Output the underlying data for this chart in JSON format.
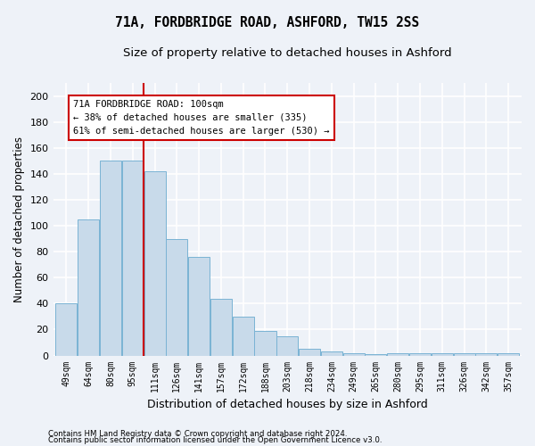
{
  "title1": "71A, FORDBRIDGE ROAD, ASHFORD, TW15 2SS",
  "title2": "Size of property relative to detached houses in Ashford",
  "xlabel": "Distribution of detached houses by size in Ashford",
  "ylabel": "Number of detached properties",
  "footer1": "Contains HM Land Registry data © Crown copyright and database right 2024.",
  "footer2": "Contains public sector information licensed under the Open Government Licence v3.0.",
  "bin_labels": [
    "49sqm",
    "64sqm",
    "80sqm",
    "95sqm",
    "111sqm",
    "126sqm",
    "141sqm",
    "157sqm",
    "172sqm",
    "188sqm",
    "203sqm",
    "218sqm",
    "234sqm",
    "249sqm",
    "265sqm",
    "280sqm",
    "295sqm",
    "311sqm",
    "326sqm",
    "342sqm",
    "357sqm"
  ],
  "bar_values": [
    40,
    105,
    150,
    150,
    142,
    90,
    76,
    44,
    30,
    19,
    15,
    5,
    3,
    2,
    1,
    2,
    2,
    2,
    2,
    2,
    2
  ],
  "bar_color": "#c8daea",
  "bar_edge_color": "#7ab3d4",
  "red_line_x": 3,
  "annotation_text": "71A FORDBRIDGE ROAD: 100sqm\n← 38% of detached houses are smaller (335)\n61% of semi-detached houses are larger (530) →",
  "annotation_box_color": "white",
  "annotation_box_edge": "#cc0000",
  "ylim": [
    0,
    210
  ],
  "yticks": [
    0,
    20,
    40,
    60,
    80,
    100,
    120,
    140,
    160,
    180,
    200
  ],
  "background_color": "#eef2f8",
  "grid_color": "#ffffff",
  "title1_fontsize": 10.5,
  "title2_fontsize": 9.5,
  "xlabel_fontsize": 9,
  "ylabel_fontsize": 8.5,
  "tick_fontsize": 8,
  "ann_fontsize": 7.5
}
